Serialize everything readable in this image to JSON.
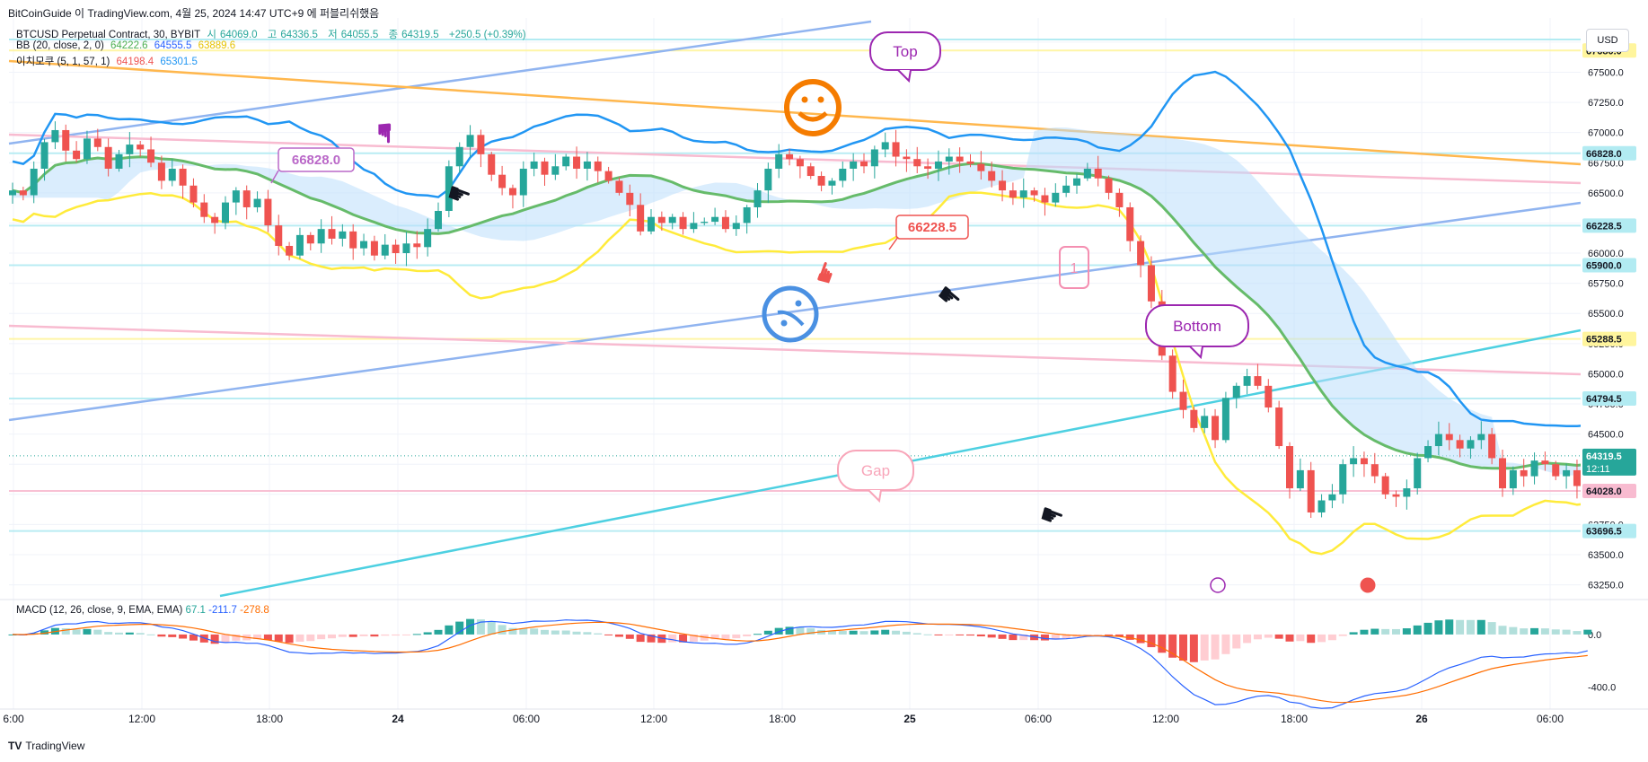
{
  "header": {
    "attribution": "BitCoinGuide 이 TradingView.com, 4월 25, 2024 14:47 UTC+9 에 퍼블리쉬했음",
    "symbol": "BTCUSD Perpetual Contract, 30, BYBIT",
    "open_label": "시",
    "open": "64069.0",
    "high_label": "고",
    "high": "64336.5",
    "low_label": "저",
    "low": "64055.5",
    "close_label": "종",
    "close": "64319.5",
    "change": "+250.5 (+0.39%)",
    "bb_label": "BB (20, close, 2, 0)",
    "bb_basis": "64222.6",
    "bb_upper": "64555.5",
    "bb_lower": "63889.6",
    "ichi_label": "이치모쿠 (5, 1, 57, 1)",
    "ichi_a": "64198.4",
    "ichi_b": "65301.5"
  },
  "currency_button": "USD",
  "macd_legend": {
    "label": "MACD (12, 26, close, 9, EMA, EMA)",
    "hist": "67.1",
    "macd": "-211.7",
    "signal": "-278.8"
  },
  "footer": {
    "logo": "TV",
    "brand": "TradingView"
  },
  "colors": {
    "up": "#26a69a",
    "down": "#ef5350",
    "bb_upper": "#2962ff",
    "bb_lower": "#ffeb3b",
    "bb_basis": "#4caf50",
    "cloud_blue": "#bbdefb",
    "cloud_red": "#ffcdd2"
  },
  "chart_data": {
    "type": "candlestick",
    "y_axis": {
      "range": [
        63150,
        67950
      ],
      "ticks": [
        "67750.0",
        "67500.0",
        "67250.0",
        "67000.0",
        "66750.0",
        "66500.0",
        "66250.0",
        "66000.0",
        "65750.0",
        "65500.0",
        "65250.0",
        "65000.0",
        "64750.0",
        "64500.0",
        "64250.0",
        "64000.0",
        "63750.0",
        "63500.0",
        "63250.0"
      ]
    },
    "x_axis": {
      "ticks": [
        "6:00",
        "12:00",
        "18:00",
        "24",
        "06:00",
        "12:00",
        "18:00",
        "25",
        "06:00",
        "12:00",
        "18:00",
        "26",
        "06:00"
      ]
    },
    "price_labels": [
      {
        "value": 67680.0,
        "text": "67680.0",
        "color": "#fff59d"
      },
      {
        "value": 66828.0,
        "text": "66828.0",
        "color": "#b2ebf2"
      },
      {
        "value": 66228.5,
        "text": "66228.5",
        "color": "#b2ebf2"
      },
      {
        "value": 65900.0,
        "text": "65900.0",
        "color": "#b2ebf2"
      },
      {
        "value": 65288.5,
        "text": "65288.5",
        "color": "#fff59d"
      },
      {
        "value": 64794.5,
        "text": "64794.5",
        "color": "#b2ebf2"
      },
      {
        "value": 64319.5,
        "text": "64319.5",
        "color": "#26a69a",
        "sub": "12:11"
      },
      {
        "value": 64028.0,
        "text": "64028.0",
        "color": "#f8bbd0"
      },
      {
        "value": 63696.5,
        "text": "63696.5",
        "color": "#b2ebf2"
      }
    ],
    "annotations": {
      "top": "Top",
      "bottom": "Bottom",
      "gap": "Gap",
      "price_66828": "66828.0",
      "price_66228": "66228.5",
      "num_1": "1"
    },
    "closes": [
      66520,
      66480,
      66700,
      66920,
      67020,
      66850,
      66780,
      66950,
      66880,
      66700,
      66820,
      66900,
      66860,
      66750,
      66600,
      66700,
      66560,
      66420,
      66300,
      66250,
      66420,
      66520,
      66380,
      66450,
      66230,
      66060,
      65980,
      66150,
      66080,
      66200,
      66120,
      66180,
      66040,
      66100,
      65980,
      66070,
      66000,
      66080,
      66050,
      66200,
      66350,
      66720,
      66880,
      66980,
      66820,
      66650,
      66540,
      66480,
      66700,
      66760,
      66650,
      66720,
      66800,
      66700,
      66760,
      66680,
      66600,
      66500,
      66400,
      66180,
      66300,
      66250,
      66300,
      66200,
      66250,
      66260,
      66300,
      66200,
      66250,
      66380,
      66520,
      66700,
      66820,
      66780,
      66720,
      66640,
      66560,
      66600,
      66700,
      66760,
      66720,
      66860,
      66920,
      66800,
      66780,
      66720,
      66700,
      66760,
      66800,
      66760,
      66740,
      66680,
      66600,
      66520,
      66460,
      66520,
      66480,
      66420,
      66500,
      66560,
      66620,
      66700,
      66620,
      66500,
      66380,
      66100,
      65900,
      65600,
      65150,
      64850,
      64700,
      64550,
      64650,
      64450,
      64800,
      64900,
      64980,
      64900,
      64720,
      64400,
      64050,
      64200,
      63850,
      63950,
      64000,
      64250,
      64300,
      64250,
      64150,
      64000,
      63980,
      64050,
      64300,
      64400,
      64500,
      64450,
      64380,
      64450,
      64500,
      64300,
      64050,
      64200,
      64150,
      64280,
      64250,
      64150,
      64200,
      64069,
      64319.5
    ],
    "macd_axis": {
      "ticks": [
        "0.0",
        "-400.0"
      ],
      "range": [
        -500,
        150
      ]
    }
  }
}
